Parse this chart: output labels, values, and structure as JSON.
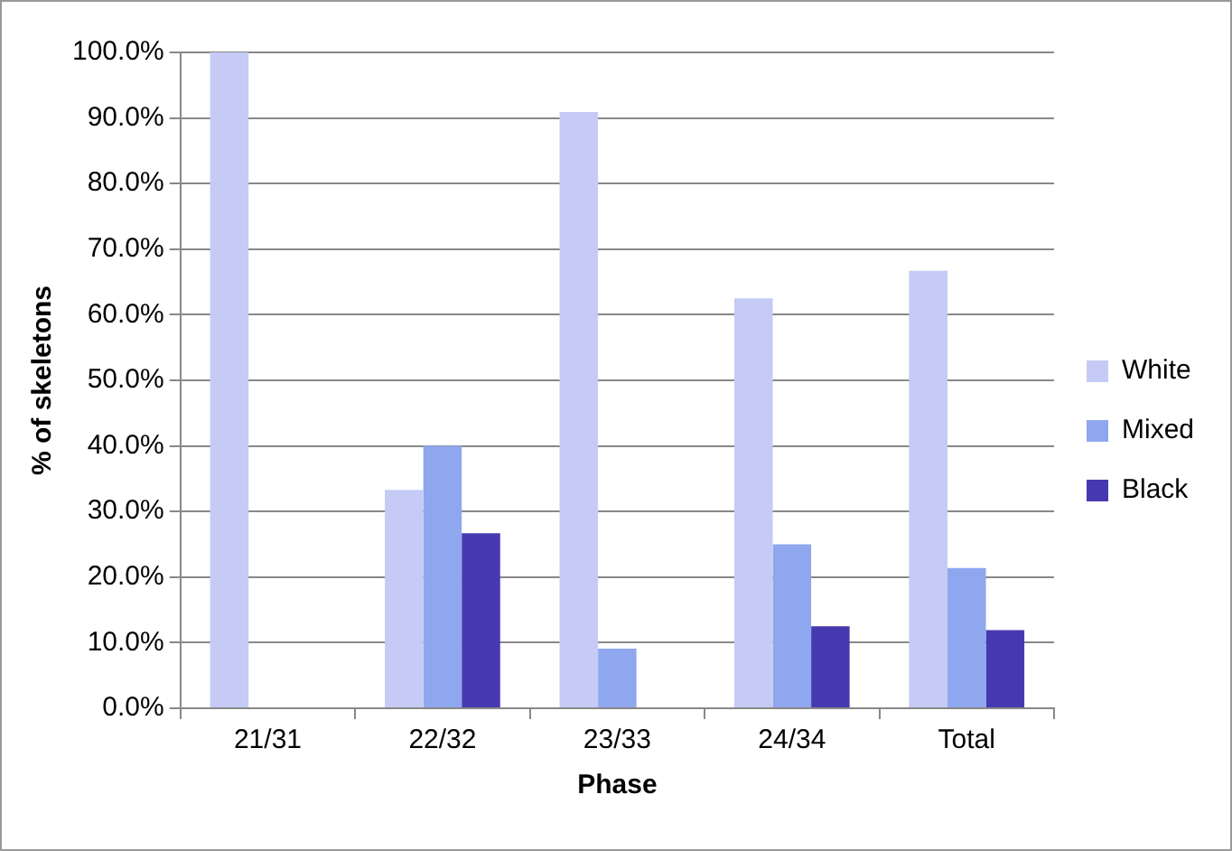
{
  "chart_data": {
    "type": "bar",
    "xlabel": "Phase",
    "ylabel": "% of skeletons",
    "categories": [
      "21/31",
      "22/32",
      "23/33",
      "24/34",
      "Total"
    ],
    "series": [
      {
        "name": "White",
        "color": "#c5cbf5",
        "values": [
          100,
          33.3,
          90.9,
          62.5,
          66.7
        ]
      },
      {
        "name": "Mixed",
        "color": "#8fa7ee",
        "values": [
          0,
          40,
          9.1,
          25,
          21.4
        ]
      },
      {
        "name": "Black",
        "color": "#4639b0",
        "values": [
          0,
          26.7,
          0,
          12.5,
          11.9
        ]
      }
    ],
    "ylim": [
      0,
      100
    ],
    "yticks": [
      {
        "value": 0,
        "label": "0.0%"
      },
      {
        "value": 10,
        "label": "10.0%"
      },
      {
        "value": 20,
        "label": "20.0%"
      },
      {
        "value": 30,
        "label": "30.0%"
      },
      {
        "value": 40,
        "label": "40.0%"
      },
      {
        "value": 50,
        "label": "50.0%"
      },
      {
        "value": 60,
        "label": "60.0%"
      },
      {
        "value": 70,
        "label": "70.0%"
      },
      {
        "value": 80,
        "label": "80.0%"
      },
      {
        "value": 90,
        "label": "90.0%"
      },
      {
        "value": 100,
        "label": "100.0%"
      }
    ],
    "grid": "y",
    "legend": "right"
  }
}
